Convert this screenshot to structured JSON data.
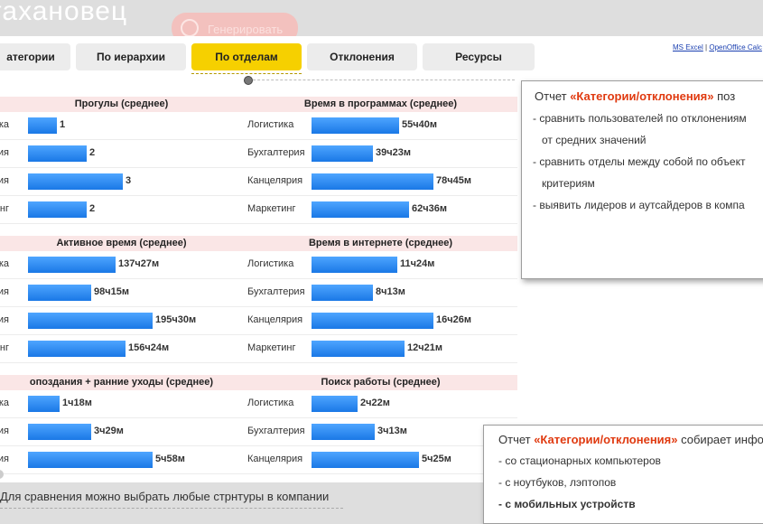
{
  "background": {
    "title_fragment": "таханoвец",
    "generate_button": "Генерировать"
  },
  "tabs": [
    {
      "label": "атегории"
    },
    {
      "label": "По иерархии"
    },
    {
      "label": "По отделам",
      "active": true
    },
    {
      "label": "Отклонения"
    },
    {
      "label": "Ресурсы"
    }
  ],
  "export": {
    "excel": "MS Excel",
    "sep": "|",
    "calc": "OpenOffice Calc"
  },
  "cards": [
    {
      "title": "Прогулы (среднее)",
      "rows": [
        {
          "label": "ика",
          "value": "1",
          "pct": 12
        },
        {
          "label": "терия",
          "value": "2",
          "pct": 24
        },
        {
          "label": "ярия",
          "value": "3",
          "pct": 39
        },
        {
          "label": "инг",
          "value": "2",
          "pct": 24
        }
      ]
    },
    {
      "title": "Время в программах (среднее)",
      "rows": [
        {
          "label": "Логистика",
          "value": "55ч40м",
          "pct": 36
        },
        {
          "label": "Бухгалтерия",
          "value": "39ч23м",
          "pct": 25
        },
        {
          "label": "Канцелярия",
          "value": "78ч45м",
          "pct": 50
        },
        {
          "label": "Маркетинг",
          "value": "62ч36м",
          "pct": 40
        }
      ]
    },
    {
      "title": "Активное время (среднее)",
      "rows": [
        {
          "label": "ика",
          "value": "137ч27м",
          "pct": 36
        },
        {
          "label": "терия",
          "value": "98ч15м",
          "pct": 26
        },
        {
          "label": "ярия",
          "value": "195ч30м",
          "pct": 51
        },
        {
          "label": "инг",
          "value": "156ч24м",
          "pct": 40
        }
      ]
    },
    {
      "title": "Время в интернете (среднее)",
      "rows": [
        {
          "label": "Логистика",
          "value": "11ч24м",
          "pct": 35
        },
        {
          "label": "Бухгалтерия",
          "value": "8ч13м",
          "pct": 25
        },
        {
          "label": "Канцелярия",
          "value": "16ч26м",
          "pct": 50
        },
        {
          "label": "Маркетинг",
          "value": "12ч21м",
          "pct": 38
        }
      ]
    },
    {
      "title": "опоздания + ранние уходы (среднее)",
      "rows": [
        {
          "label": "ика",
          "value": "1ч18м",
          "pct": 13
        },
        {
          "label": "терия",
          "value": "3ч29м",
          "pct": 26
        },
        {
          "label": "ярия",
          "value": "5ч58м",
          "pct": 51
        },
        {
          "label": "",
          "value": "",
          "pct": 0
        }
      ]
    },
    {
      "title": "Поиск работы (среднее)",
      "rows": [
        {
          "label": "Логистика",
          "value": "2ч22м",
          "pct": 19
        },
        {
          "label": "Бухгалтерия",
          "value": "3ч13м",
          "pct": 26
        },
        {
          "label": "Канцелярия",
          "value": "5ч25м",
          "pct": 44
        },
        {
          "label": "",
          "value": "",
          "pct": 0
        }
      ]
    }
  ],
  "tip1": {
    "prefix": "Отчет ",
    "emph": "«Категории/отклонения»",
    "suffix": " поз",
    "lines": [
      "- сравнить пользователей по отклонениям",
      "от средних значений",
      "- сравнить отделы между собой по объект",
      "критериям",
      "- выявить лидеров и аутсайдеров в компа"
    ]
  },
  "tip2": {
    "prefix": "Отчет ",
    "emph": "«Категории/отклонения»",
    "suffix": " собирает инфо",
    "lines": [
      "- со стационарных компьютеров",
      "- с ноутбуков, лэптопов",
      "- с мобильных устройств"
    ]
  },
  "caption": "Для сравнения можно выбрать любые стрнтуры в компании"
}
